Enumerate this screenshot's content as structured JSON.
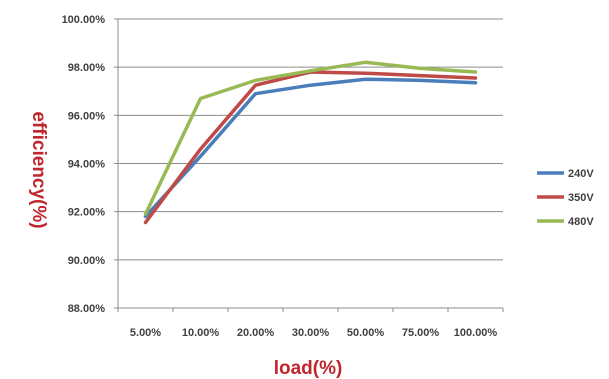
{
  "chart_data": {
    "type": "line",
    "title": "",
    "xlabel": "load(%)",
    "ylabel": "efficiency(%)",
    "categories": [
      "5.00%",
      "10.00%",
      "20.00%",
      "30.00%",
      "50.00%",
      "75.00%",
      "100.00%"
    ],
    "ylim": [
      88,
      100
    ],
    "yticks": [
      "88.00%",
      "90.00%",
      "92.00%",
      "94.00%",
      "96.00%",
      "98.00%",
      "100.00%"
    ],
    "grid": true,
    "legend_position": "right",
    "series": [
      {
        "name": "240V",
        "color": "#4a7ebb",
        "values": [
          91.8,
          94.3,
          96.9,
          97.25,
          97.5,
          97.45,
          97.35
        ]
      },
      {
        "name": "350V",
        "color": "#be4b48",
        "values": [
          91.55,
          94.6,
          97.25,
          97.8,
          97.75,
          97.65,
          97.55
        ]
      },
      {
        "name": "480V",
        "color": "#98b954",
        "values": [
          91.9,
          96.7,
          97.45,
          97.85,
          98.2,
          97.95,
          97.8
        ]
      }
    ]
  }
}
